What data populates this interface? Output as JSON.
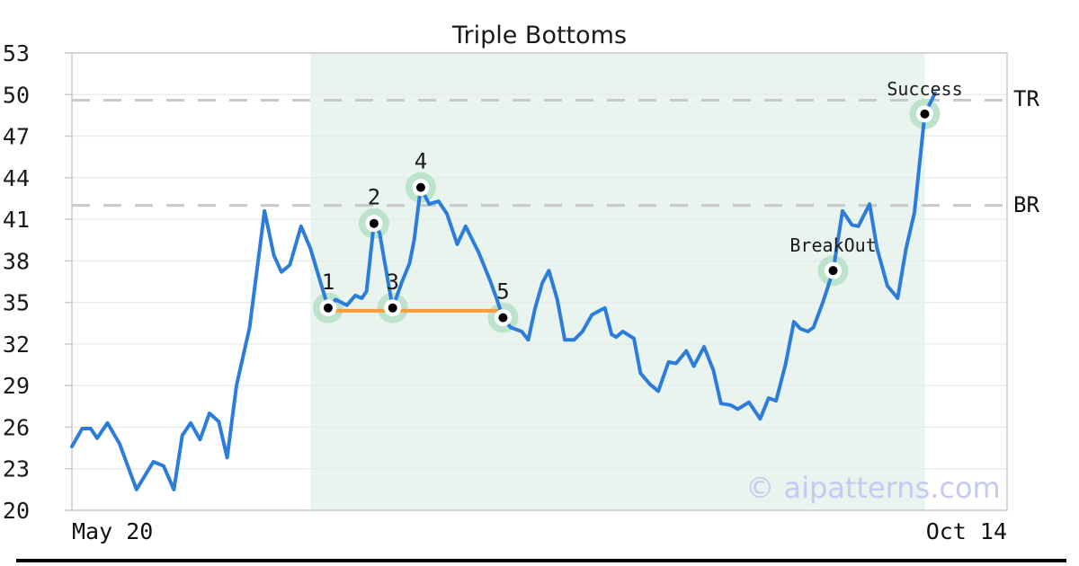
{
  "title": "Triple Bottoms",
  "watermark": "© aipatterns.com",
  "axes": {
    "ylim": [
      20,
      53
    ],
    "y_ticks": [
      53,
      50,
      47,
      44,
      41,
      38,
      35,
      32,
      29,
      26,
      23,
      20
    ],
    "x_tick_left": "May 20",
    "x_tick_right": "Oct 14"
  },
  "levels": {
    "tr": {
      "label": "TR",
      "value": 49.6
    },
    "br": {
      "label": "BR",
      "value": 42.0
    }
  },
  "chart_data": {
    "type": "line",
    "title": "Triple Bottoms",
    "xlabel": "",
    "ylabel": "",
    "x_range": [
      "May 20",
      "Oct 14"
    ],
    "ylim": [
      20,
      53
    ],
    "grid": true,
    "legend": "none",
    "series": [
      {
        "name": "price",
        "x_unit": "percent_of_x_axis",
        "points": [
          [
            0,
            24.6
          ],
          [
            1.1,
            25.9
          ],
          [
            2.0,
            25.9
          ],
          [
            2.7,
            25.2
          ],
          [
            3.8,
            26.3
          ],
          [
            5.1,
            24.8
          ],
          [
            6.9,
            21.5
          ],
          [
            8.7,
            23.5
          ],
          [
            9.8,
            23.2
          ],
          [
            10.9,
            21.5
          ],
          [
            11.8,
            25.4
          ],
          [
            12.7,
            26.3
          ],
          [
            13.7,
            25.1
          ],
          [
            14.7,
            27.0
          ],
          [
            15.7,
            26.4
          ],
          [
            16.6,
            23.8
          ],
          [
            17.6,
            29.0
          ],
          [
            19.0,
            33.2
          ],
          [
            20.6,
            41.6
          ],
          [
            21.6,
            38.4
          ],
          [
            22.4,
            37.2
          ],
          [
            23.3,
            37.7
          ],
          [
            24.5,
            40.5
          ],
          [
            25.5,
            38.9
          ],
          [
            27.4,
            34.6
          ],
          [
            28.2,
            35.2
          ],
          [
            28.8,
            35.0
          ],
          [
            29.4,
            34.8
          ],
          [
            30.3,
            35.5
          ],
          [
            31.0,
            35.3
          ],
          [
            31.5,
            35.8
          ],
          [
            32.3,
            40.7
          ],
          [
            32.9,
            40.0
          ],
          [
            34.3,
            34.6
          ],
          [
            35.3,
            36.5
          ],
          [
            36.1,
            37.8
          ],
          [
            36.6,
            39.5
          ],
          [
            37.3,
            43.3
          ],
          [
            38.2,
            42.1
          ],
          [
            39.2,
            42.3
          ],
          [
            40.1,
            41.4
          ],
          [
            41.2,
            39.2
          ],
          [
            42.1,
            40.5
          ],
          [
            43.5,
            38.6
          ],
          [
            44.7,
            36.6
          ],
          [
            45.4,
            35.3
          ],
          [
            46.1,
            33.9
          ],
          [
            46.9,
            33.2
          ],
          [
            48.1,
            32.9
          ],
          [
            48.8,
            32.3
          ],
          [
            49.5,
            34.5
          ],
          [
            50.3,
            36.4
          ],
          [
            51.0,
            37.3
          ],
          [
            51.9,
            35.2
          ],
          [
            52.7,
            32.3
          ],
          [
            53.7,
            32.3
          ],
          [
            54.6,
            32.9
          ],
          [
            55.6,
            34.1
          ],
          [
            56.7,
            34.5
          ],
          [
            57.0,
            34.6
          ],
          [
            57.7,
            32.7
          ],
          [
            58.2,
            32.5
          ],
          [
            58.9,
            32.9
          ],
          [
            60.1,
            32.4
          ],
          [
            60.8,
            29.9
          ],
          [
            61.8,
            29.1
          ],
          [
            62.7,
            28.6
          ],
          [
            63.8,
            30.7
          ],
          [
            64.6,
            30.6
          ],
          [
            65.7,
            31.5
          ],
          [
            66.5,
            30.4
          ],
          [
            67.6,
            31.8
          ],
          [
            68.6,
            30.1
          ],
          [
            69.4,
            27.7
          ],
          [
            70.4,
            27.6
          ],
          [
            71.2,
            27.3
          ],
          [
            72.4,
            27.8
          ],
          [
            73.6,
            26.6
          ],
          [
            74.5,
            28.1
          ],
          [
            75.3,
            27.9
          ],
          [
            76.3,
            30.5
          ],
          [
            77.2,
            33.6
          ],
          [
            77.9,
            33.1
          ],
          [
            78.7,
            32.9
          ],
          [
            79.3,
            33.2
          ],
          [
            80.3,
            35.0
          ],
          [
            81.4,
            37.3
          ],
          [
            82.4,
            41.6
          ],
          [
            83.4,
            40.6
          ],
          [
            84.1,
            40.5
          ],
          [
            85.3,
            42.1
          ],
          [
            86.1,
            38.9
          ],
          [
            87.2,
            36.2
          ],
          [
            88.3,
            35.3
          ],
          [
            89.2,
            38.9
          ],
          [
            90.1,
            41.5
          ],
          [
            91.2,
            48.6
          ],
          [
            92.3,
            50.1
          ]
        ]
      }
    ],
    "support_line": {
      "x1_pct": 27.4,
      "x2_pct": 46.1,
      "value": 34.4
    },
    "shade_region": {
      "x1_pct": 25.5,
      "x2_pct": 91.2
    },
    "markers": [
      {
        "x_pct": 27.4,
        "value": 34.6,
        "label": "1"
      },
      {
        "x_pct": 32.3,
        "value": 40.7,
        "label": "2"
      },
      {
        "x_pct": 34.3,
        "value": 34.6,
        "label": "3"
      },
      {
        "x_pct": 37.3,
        "value": 43.3,
        "label": "4"
      },
      {
        "x_pct": 46.1,
        "value": 33.9,
        "label": "5"
      },
      {
        "x_pct": 81.4,
        "value": 37.3,
        "label": "BreakOut"
      },
      {
        "x_pct": 91.2,
        "value": 48.6,
        "label": "Success"
      }
    ]
  },
  "colors": {
    "line": "#2c7ddb",
    "support": "#f89b3c",
    "halo": "#bde3cd",
    "shade": "#e9f4ee",
    "dashed": "#c9c9c9",
    "grid": "#e9e9e9",
    "spine": "#c9c9c9",
    "watermark": "#c7c9f1",
    "marker_dot": "#000000",
    "marker_ring": "#ffffff"
  }
}
